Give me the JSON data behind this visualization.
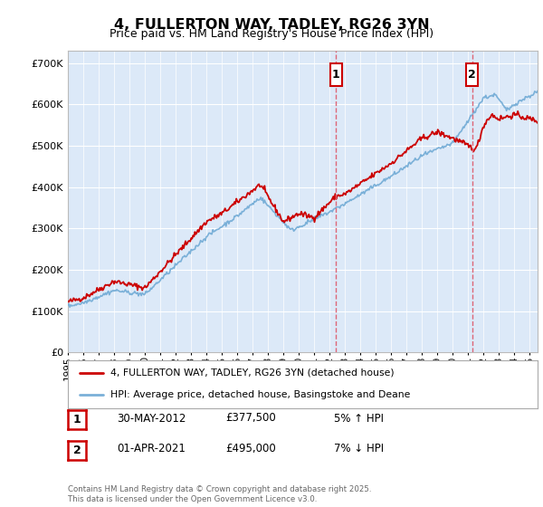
{
  "title": "4, FULLERTON WAY, TADLEY, RG26 3YN",
  "subtitle": "Price paid vs. HM Land Registry's House Price Index (HPI)",
  "ylabel_ticks": [
    "£0",
    "£100K",
    "£200K",
    "£300K",
    "£400K",
    "£500K",
    "£600K",
    "£700K"
  ],
  "ytick_values": [
    0,
    100000,
    200000,
    300000,
    400000,
    500000,
    600000,
    700000
  ],
  "ylim": [
    0,
    730000
  ],
  "xlim_start": 1995,
  "xlim_end": 2025.5,
  "background_color": "#ffffff",
  "plot_bg_color": "#dce9f8",
  "grid_color": "#ffffff",
  "line1_color": "#cc0000",
  "line2_color": "#7ab0d8",
  "marker1_x": 2012.41,
  "marker2_x": 2021.25,
  "legend_entries": [
    "4, FULLERTON WAY, TADLEY, RG26 3YN (detached house)",
    "HPI: Average price, detached house, Basingstoke and Deane"
  ],
  "table_rows": [
    {
      "num": "1",
      "date": "30-MAY-2012",
      "price": "£377,500",
      "pct": "5% ↑ HPI"
    },
    {
      "num": "2",
      "date": "01-APR-2021",
      "price": "£495,000",
      "pct": "7% ↓ HPI"
    }
  ],
  "footer": "Contains HM Land Registry data © Crown copyright and database right 2025.\nThis data is licensed under the Open Government Licence v3.0."
}
